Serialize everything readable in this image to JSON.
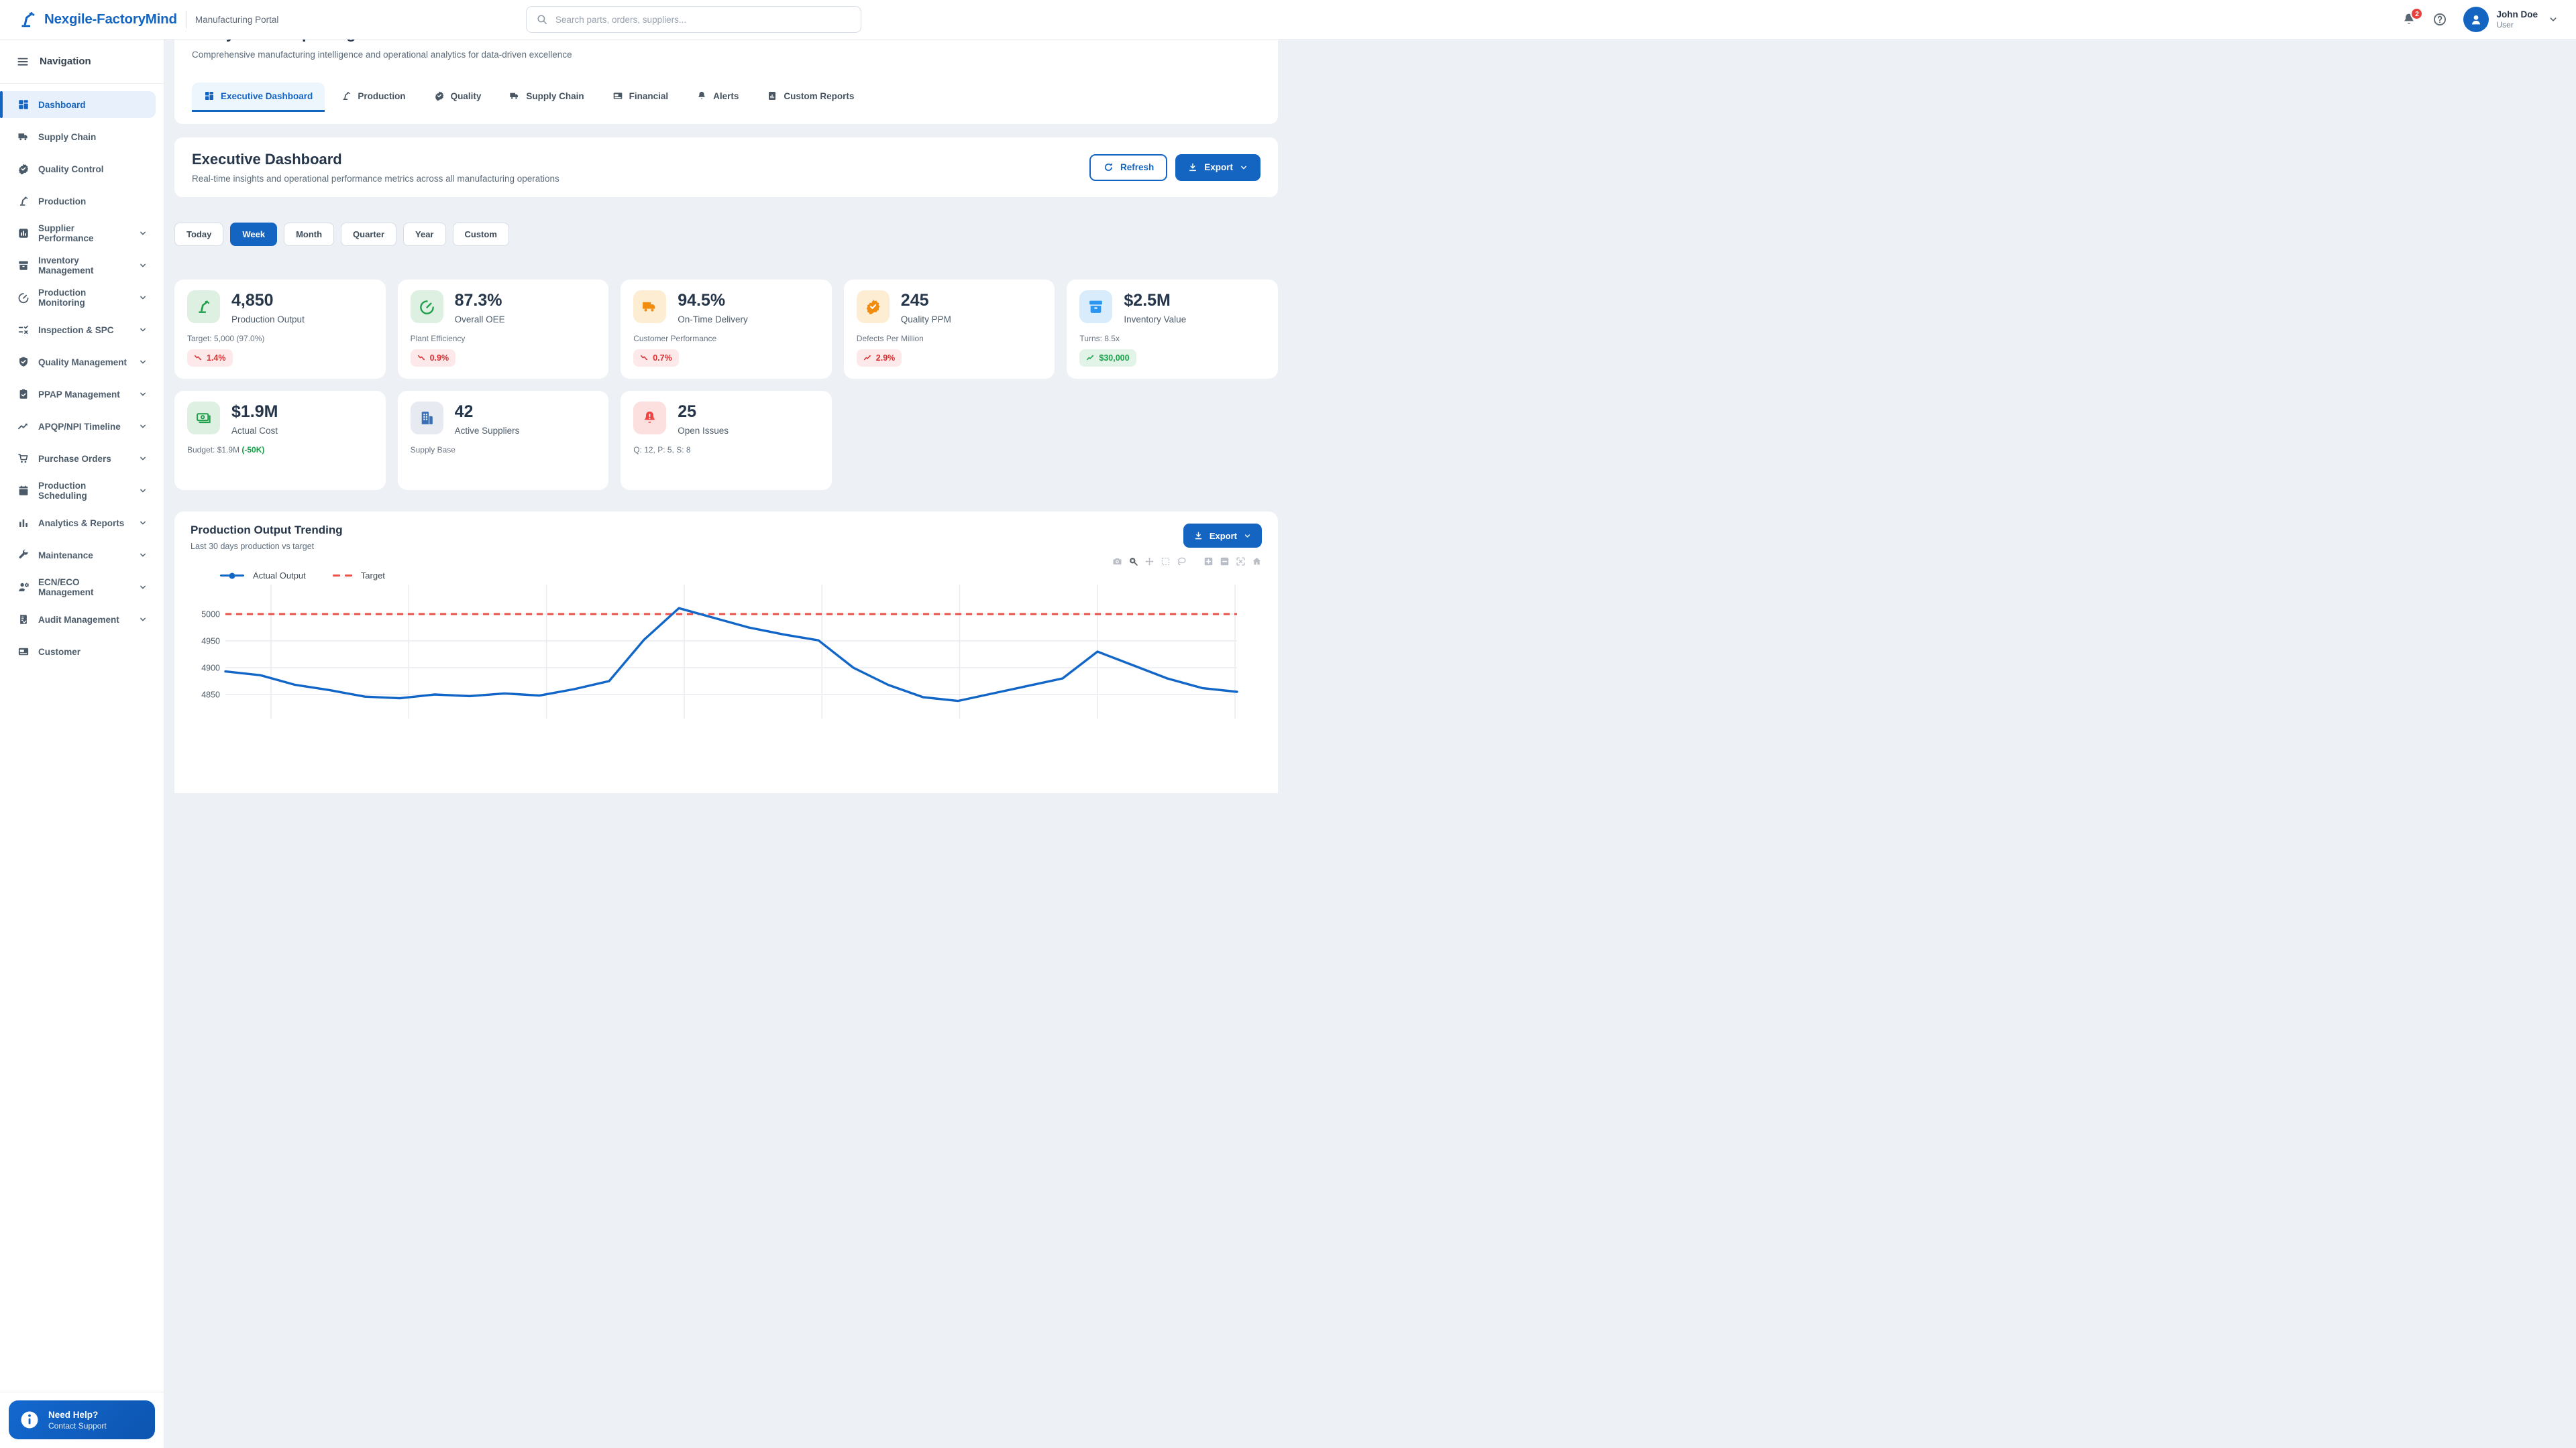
{
  "header": {
    "brand": "Nexgile-FactoryMind",
    "subtitle": "Manufacturing Portal",
    "search_placeholder": "Search parts, orders, suppliers...",
    "notification_count": "2",
    "user": {
      "name": "John Doe",
      "role": "User"
    }
  },
  "sidebar": {
    "title": "Navigation",
    "items": [
      {
        "label": "Dashboard",
        "icon": "grid",
        "active": true,
        "expandable": false
      },
      {
        "label": "Supply Chain",
        "icon": "truck",
        "active": false,
        "expandable": false
      },
      {
        "label": "Quality Control",
        "icon": "badge-check",
        "active": false,
        "expandable": false
      },
      {
        "label": "Production",
        "icon": "robot-arm",
        "active": false,
        "expandable": false
      },
      {
        "label": "Supplier Performance",
        "icon": "bar-square",
        "active": false,
        "expandable": true
      },
      {
        "label": "Inventory Management",
        "icon": "archive",
        "active": false,
        "expandable": true
      },
      {
        "label": "Production Monitoring",
        "icon": "gauge",
        "active": false,
        "expandable": true
      },
      {
        "label": "Inspection & SPC",
        "icon": "checklist",
        "active": false,
        "expandable": true
      },
      {
        "label": "Quality Management",
        "icon": "shield-check",
        "active": false,
        "expandable": true
      },
      {
        "label": "PPAP Management",
        "icon": "clipboard-check",
        "active": false,
        "expandable": true
      },
      {
        "label": "APQP/NPI Timeline",
        "icon": "trend",
        "active": false,
        "expandable": true
      },
      {
        "label": "Purchase Orders",
        "icon": "cart",
        "active": false,
        "expandable": true
      },
      {
        "label": "Production Scheduling",
        "icon": "calendar",
        "active": false,
        "expandable": true
      },
      {
        "label": "Analytics & Reports",
        "icon": "bars",
        "active": false,
        "expandable": true
      },
      {
        "label": "Maintenance",
        "icon": "wrench",
        "active": false,
        "expandable": true
      },
      {
        "label": "ECN/ECO Management",
        "icon": "person-gear",
        "active": false,
        "expandable": true
      },
      {
        "label": "Audit Management",
        "icon": "doc-check",
        "active": false,
        "expandable": true
      },
      {
        "label": "Customer",
        "icon": "card",
        "active": false,
        "expandable": false
      }
    ],
    "help_card": {
      "title": "Need Help?",
      "subtitle": "Contact Support"
    }
  },
  "page": {
    "title": "Analytics & Reporting",
    "subtitle": "Comprehensive manufacturing intelligence and operational analytics for data-driven excellence",
    "tabs": [
      {
        "label": "Executive Dashboard",
        "icon": "grid",
        "active": true
      },
      {
        "label": "Production",
        "icon": "robot-arm",
        "active": false
      },
      {
        "label": "Quality",
        "icon": "badge-check",
        "active": false
      },
      {
        "label": "Supply Chain",
        "icon": "truck",
        "active": false
      },
      {
        "label": "Financial",
        "icon": "card",
        "active": false
      },
      {
        "label": "Alerts",
        "icon": "bell",
        "active": false
      },
      {
        "label": "Custom Reports",
        "icon": "doc-chart",
        "active": false
      }
    ]
  },
  "section": {
    "title": "Executive Dashboard",
    "subtitle": "Real-time insights and operational performance metrics across all manufacturing operations",
    "refresh_label": "Refresh",
    "export_label": "Export"
  },
  "period_filters": [
    "Today",
    "Week",
    "Month",
    "Quarter",
    "Year",
    "Custom"
  ],
  "active_period": "Week",
  "kpi_cards": [
    {
      "value": "4,850",
      "label": "Production Output",
      "sub": "Target: 5,000 (97.0%)",
      "sub_highlight": "",
      "icon": "robot-arm",
      "tone": "green",
      "badge": {
        "text": "1.4%",
        "trend": "down",
        "tone": "red"
      }
    },
    {
      "value": "87.3%",
      "label": "Overall OEE",
      "sub": "Plant Efficiency",
      "sub_highlight": "",
      "icon": "gauge",
      "tone": "green",
      "badge": {
        "text": "0.9%",
        "trend": "down",
        "tone": "red"
      }
    },
    {
      "value": "94.5%",
      "label": "On-Time Delivery",
      "sub": "Customer Performance",
      "sub_highlight": "",
      "icon": "truck",
      "tone": "orange",
      "badge": {
        "text": "0.7%",
        "trend": "down",
        "tone": "red"
      }
    },
    {
      "value": "245",
      "label": "Quality PPM",
      "sub": "Defects Per Million",
      "sub_highlight": "",
      "icon": "badge-check",
      "tone": "orange",
      "badge": {
        "text": "2.9%",
        "trend": "up",
        "tone": "red"
      }
    },
    {
      "value": "$2.5M",
      "label": "Inventory Value",
      "sub": "Turns: 8.5x",
      "sub_highlight": "",
      "icon": "archive",
      "tone": "blue",
      "badge": {
        "text": "$30,000",
        "trend": "up",
        "tone": "green"
      }
    },
    {
      "value": "$1.9M",
      "label": "Actual Cost",
      "sub": "Budget: $1.9M",
      "sub_highlight": "(-50K)",
      "icon": "banknote",
      "tone": "green",
      "badge": null
    },
    {
      "value": "42",
      "label": "Active Suppliers",
      "sub": "Supply Base",
      "sub_highlight": "",
      "icon": "building",
      "tone": "slate",
      "badge": null
    },
    {
      "value": "25",
      "label": "Open Issues",
      "sub": "Q: 12, P: 5, S: 8",
      "sub_highlight": "",
      "icon": "bell-alert",
      "tone": "red",
      "badge": null
    }
  ],
  "chart_card": {
    "title": "Production Output Trending",
    "subtitle": "Last 30 days production vs target",
    "export_label": "Export",
    "modebar": [
      "camera",
      "zoom",
      "pan",
      "box-select",
      "lasso",
      "zoom-in",
      "zoom-out",
      "autoscale",
      "home"
    ]
  },
  "chart_data": {
    "type": "line",
    "title": "Production Output Trending",
    "xlabel": "",
    "ylabel": "",
    "x": [
      1,
      2,
      3,
      4,
      5,
      6,
      7,
      8,
      9,
      10,
      11,
      12,
      13,
      14,
      15,
      16,
      17,
      18,
      19,
      20,
      21,
      22,
      23,
      24,
      25,
      26,
      27,
      28,
      29,
      30
    ],
    "series": [
      {
        "name": "Actual Output",
        "color": "#1266c8",
        "style": "solid",
        "values": [
          4893,
          4886,
          4868,
          4858,
          4846,
          4843,
          4850,
          4847,
          4852,
          4848,
          4860,
          4875,
          4952,
          5011,
          4993,
          4975,
          4962,
          4951,
          4900,
          4868,
          4845,
          4838,
          4852,
          4866,
          4880,
          4930,
          4905,
          4880,
          4862,
          4855
        ]
      },
      {
        "name": "Target",
        "color": "#e5534b",
        "style": "dashed",
        "values": [
          5000,
          5000,
          5000,
          5000,
          5000,
          5000,
          5000,
          5000,
          5000,
          5000,
          5000,
          5000,
          5000,
          5000,
          5000,
          5000,
          5000,
          5000,
          5000,
          5000,
          5000,
          5000,
          5000,
          5000,
          5000,
          5000,
          5000,
          5000,
          5000,
          5000
        ]
      }
    ],
    "y_ticks_visible": [
      5000,
      4950,
      4900
    ],
    "ylim_visible": [
      4890,
      5030
    ],
    "grid": true,
    "legend_position": "top-left"
  },
  "colors": {
    "accent_blue": "#1464c2",
    "line_blue": "#1266c8",
    "target_red": "#e5534b",
    "badge_red_text": "#d92f2f",
    "badge_green_text": "#17a34a",
    "notification_red": "#e8413c"
  }
}
